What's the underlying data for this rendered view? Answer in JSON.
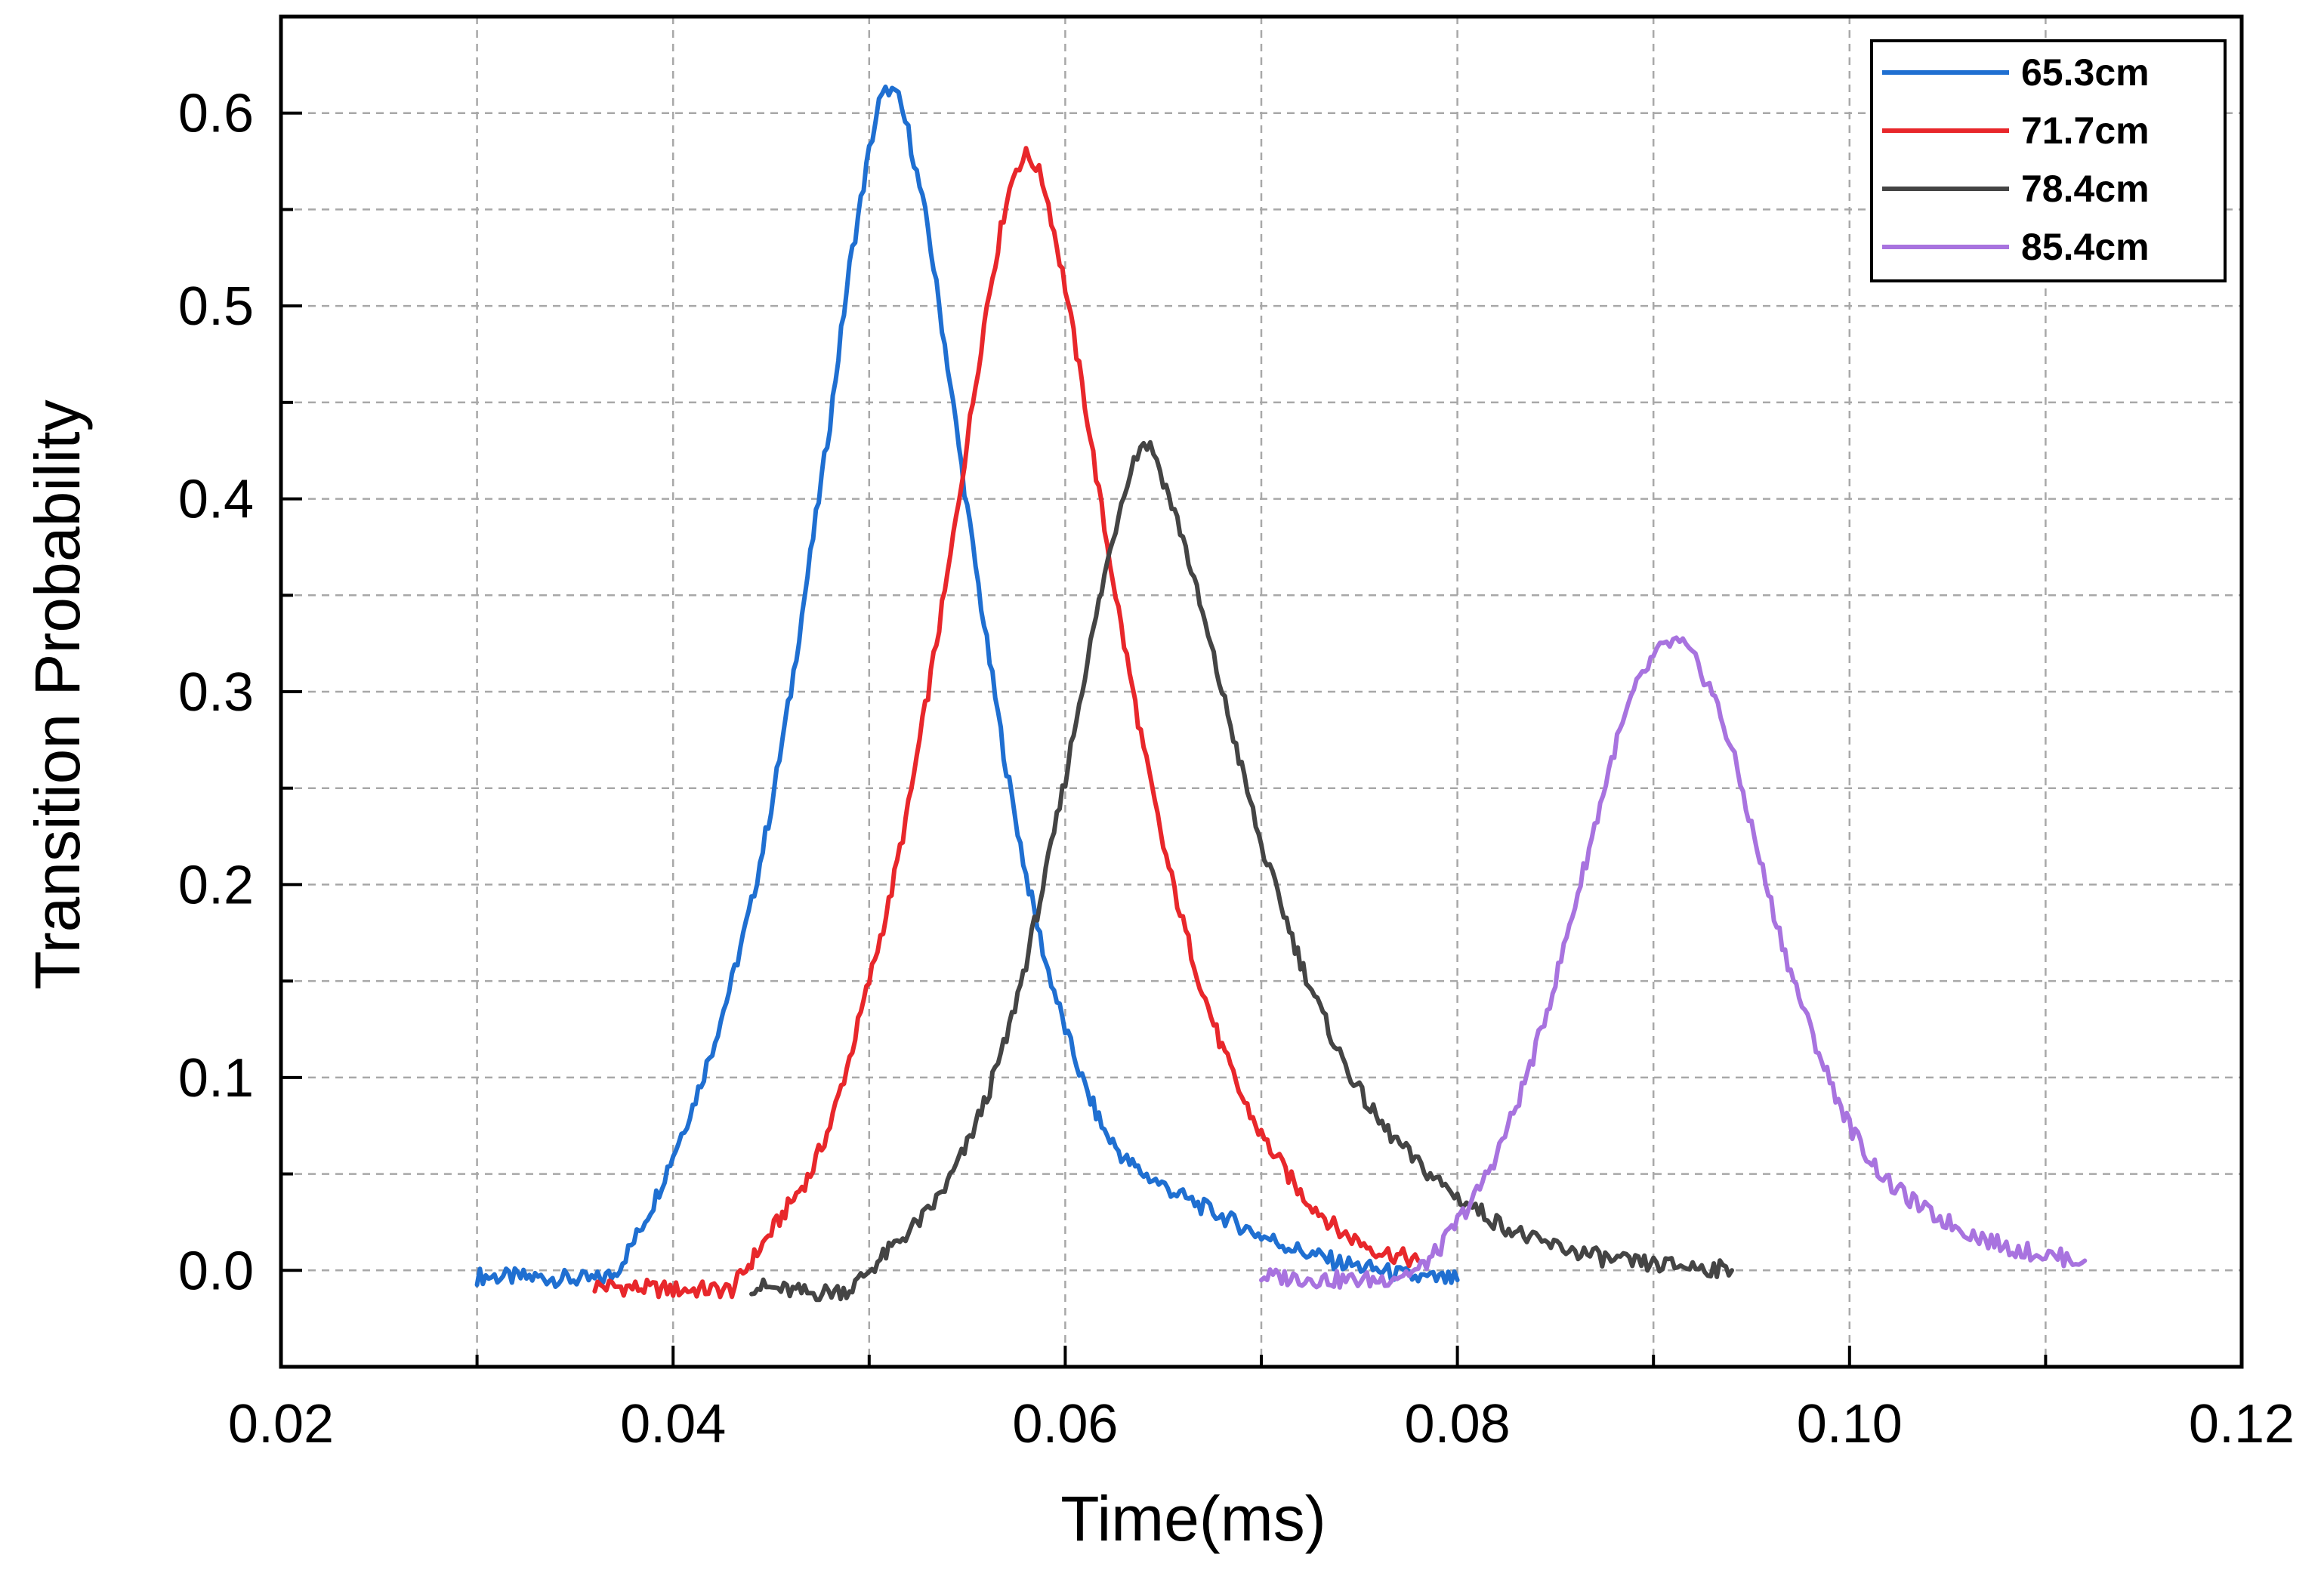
{
  "chart_data": {
    "type": "line",
    "title": "",
    "xlabel": "Time(ms)",
    "ylabel": "Transition Probability",
    "xlim": [
      0.02,
      0.12
    ],
    "ylim": [
      -0.05,
      0.65
    ],
    "xticks": [
      0.02,
      0.04,
      0.06,
      0.08,
      0.1,
      0.12
    ],
    "xtick_labels": [
      "0.02",
      "0.04",
      "0.06",
      "0.08",
      "0.10",
      "0.12"
    ],
    "yticks": [
      0.0,
      0.1,
      0.2,
      0.3,
      0.4,
      0.5,
      0.6
    ],
    "ytick_labels": [
      "0.0",
      "0.1",
      "0.2",
      "0.3",
      "0.4",
      "0.5",
      "0.6"
    ],
    "grid": true,
    "legend_position": "top-right",
    "series": [
      {
        "name": "65.3cm",
        "color": "#1f6fd1",
        "x": [
          0.03,
          0.034,
          0.036,
          0.037,
          0.038,
          0.039,
          0.04,
          0.041,
          0.042,
          0.043,
          0.044,
          0.045,
          0.046,
          0.047,
          0.048,
          0.049,
          0.05,
          0.0505,
          0.051,
          0.0515,
          0.052,
          0.053,
          0.054,
          0.055,
          0.056,
          0.057,
          0.058,
          0.059,
          0.06,
          0.061,
          0.062,
          0.063,
          0.064,
          0.066,
          0.068,
          0.07,
          0.072,
          0.074,
          0.076,
          0.078,
          0.08
        ],
        "y": [
          -0.003,
          -0.004,
          -0.005,
          -0.002,
          0.015,
          0.035,
          0.06,
          0.085,
          0.115,
          0.15,
          0.19,
          0.24,
          0.3,
          0.37,
          0.44,
          0.52,
          0.58,
          0.605,
          0.613,
          0.607,
          0.59,
          0.54,
          0.47,
          0.395,
          0.325,
          0.26,
          0.205,
          0.16,
          0.125,
          0.095,
          0.072,
          0.058,
          0.05,
          0.038,
          0.028,
          0.018,
          0.01,
          0.004,
          0.0,
          -0.004,
          -0.005
        ]
      },
      {
        "name": "71.7cm",
        "color": "#e8272b",
        "x": [
          0.036,
          0.04,
          0.043,
          0.044,
          0.045,
          0.046,
          0.047,
          0.048,
          0.049,
          0.05,
          0.051,
          0.052,
          0.053,
          0.054,
          0.055,
          0.056,
          0.057,
          0.0575,
          0.058,
          0.0585,
          0.059,
          0.06,
          0.061,
          0.062,
          0.063,
          0.064,
          0.065,
          0.066,
          0.067,
          0.068,
          0.069,
          0.07,
          0.072,
          0.074,
          0.076,
          0.078
        ],
        "y": [
          -0.008,
          -0.01,
          -0.01,
          0.005,
          0.02,
          0.035,
          0.05,
          0.075,
          0.11,
          0.15,
          0.19,
          0.24,
          0.3,
          0.36,
          0.43,
          0.5,
          0.555,
          0.572,
          0.578,
          0.573,
          0.56,
          0.51,
          0.45,
          0.385,
          0.325,
          0.27,
          0.22,
          0.18,
          0.145,
          0.115,
          0.09,
          0.07,
          0.04,
          0.02,
          0.01,
          0.005
        ]
      },
      {
        "name": "78.4cm",
        "color": "#444444",
        "x": [
          0.044,
          0.047,
          0.049,
          0.05,
          0.051,
          0.052,
          0.053,
          0.054,
          0.055,
          0.056,
          0.057,
          0.058,
          0.059,
          0.06,
          0.061,
          0.062,
          0.063,
          0.0635,
          0.064,
          0.0645,
          0.065,
          0.066,
          0.067,
          0.068,
          0.069,
          0.07,
          0.071,
          0.072,
          0.073,
          0.074,
          0.075,
          0.076,
          0.078,
          0.08,
          0.082,
          0.084,
          0.086,
          0.088,
          0.09,
          0.092,
          0.094
        ],
        "y": [
          -0.008,
          -0.012,
          -0.01,
          0.0,
          0.01,
          0.02,
          0.03,
          0.045,
          0.065,
          0.09,
          0.12,
          0.16,
          0.205,
          0.255,
          0.31,
          0.36,
          0.405,
          0.42,
          0.43,
          0.425,
          0.41,
          0.38,
          0.34,
          0.3,
          0.26,
          0.22,
          0.19,
          0.16,
          0.135,
          0.112,
          0.093,
          0.077,
          0.055,
          0.038,
          0.025,
          0.015,
          0.01,
          0.005,
          0.003,
          0.002,
          0.0
        ]
      },
      {
        "name": "85.4cm",
        "color": "#a873df",
        "x": [
          0.07,
          0.074,
          0.076,
          0.078,
          0.079,
          0.08,
          0.081,
          0.082,
          0.083,
          0.084,
          0.085,
          0.086,
          0.087,
          0.088,
          0.089,
          0.09,
          0.0905,
          0.091,
          0.0915,
          0.092,
          0.093,
          0.094,
          0.095,
          0.096,
          0.097,
          0.098,
          0.099,
          0.1,
          0.101,
          0.102,
          0.104,
          0.106,
          0.108,
          0.11,
          0.112
        ],
        "y": [
          -0.003,
          -0.005,
          -0.005,
          0.0,
          0.01,
          0.025,
          0.04,
          0.06,
          0.085,
          0.115,
          0.15,
          0.19,
          0.23,
          0.27,
          0.3,
          0.318,
          0.323,
          0.326,
          0.324,
          0.318,
          0.3,
          0.27,
          0.23,
          0.19,
          0.155,
          0.125,
          0.098,
          0.075,
          0.058,
          0.045,
          0.03,
          0.02,
          0.012,
          0.008,
          0.005
        ]
      }
    ]
  }
}
